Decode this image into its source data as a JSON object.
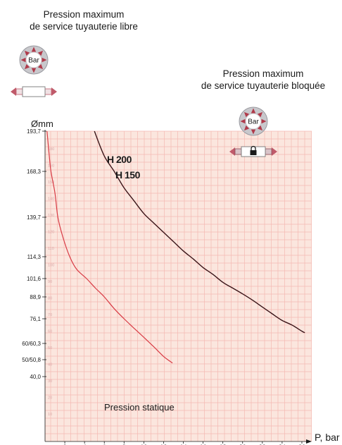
{
  "titles": {
    "free_line1": "Pression maximum",
    "free_line2": "de service tuyauterie libre",
    "blocked_line1": "Pression maximum",
    "blocked_line2": "de service tuyauterie bloquée"
  },
  "icons": {
    "badge_text": "Bar",
    "free": [
      "pressure-badge-icon",
      "free-pipe-icon"
    ],
    "blocked": [
      "pressure-badge-icon",
      "locked-pipe-icon"
    ]
  },
  "colors": {
    "plot_background": "#fbe6de",
    "grid": "#f4b8b2",
    "curve_free": "#d83a44",
    "curve_blocked": "#3a1418",
    "badge": "#c8c8cc",
    "arrow": "#b03a4a"
  },
  "chart_data": {
    "type": "line",
    "xlabel": "P, bar",
    "ylabel": "Ømm",
    "x_ticks": [
      2,
      4,
      6,
      8,
      10,
      12,
      14,
      16,
      18,
      20,
      22,
      24,
      26
    ],
    "xlim": [
      0,
      27
    ],
    "y_tick_labels": [
      "193,7",
      "168,3",
      "139,7",
      "114,3",
      "101,6",
      "88,9",
      "76,1",
      "60/60,3",
      "50/50,8",
      "40,0"
    ],
    "y_inner_ticks": [
      "180",
      "160",
      "150",
      "140",
      "130",
      "120",
      "110",
      "100",
      "90",
      "80",
      "70",
      "60",
      "50",
      "40",
      "30",
      "20",
      "10"
    ],
    "annotations": {
      "series_blocked": "H 200",
      "series_free": "H 150",
      "bottom": "Pression statique"
    },
    "series": [
      {
        "name": "tuyauterie libre",
        "points": [
          [
            0.2,
            193.7
          ],
          [
            0.4,
            180
          ],
          [
            0.6,
            168.3
          ],
          [
            1,
            155
          ],
          [
            1.3,
            139.7
          ],
          [
            1.8,
            127
          ],
          [
            2.5,
            114.3
          ],
          [
            3.2,
            107
          ],
          [
            4.2,
            101.6
          ],
          [
            5.1,
            95
          ],
          [
            6,
            88.9
          ],
          [
            7,
            82
          ],
          [
            8,
            76.1
          ],
          [
            9,
            70
          ],
          [
            10,
            64
          ],
          [
            11,
            58
          ],
          [
            12,
            52
          ],
          [
            12.9,
            48
          ]
        ]
      },
      {
        "name": "tuyauterie bloquée",
        "points": [
          [
            5,
            193.7
          ],
          [
            6,
            178
          ],
          [
            7,
            168.3
          ],
          [
            8,
            158
          ],
          [
            9,
            150
          ],
          [
            10,
            142
          ],
          [
            11,
            136
          ],
          [
            12,
            130
          ],
          [
            13,
            124
          ],
          [
            14,
            118
          ],
          [
            15,
            113
          ],
          [
            16,
            108
          ],
          [
            17,
            104
          ],
          [
            18,
            99
          ],
          [
            19,
            95
          ],
          [
            20,
            91
          ],
          [
            21,
            87
          ],
          [
            22,
            83
          ],
          [
            23,
            79
          ],
          [
            24,
            75
          ],
          [
            25,
            72
          ],
          [
            26,
            68
          ],
          [
            26.3,
            67
          ]
        ]
      }
    ]
  }
}
